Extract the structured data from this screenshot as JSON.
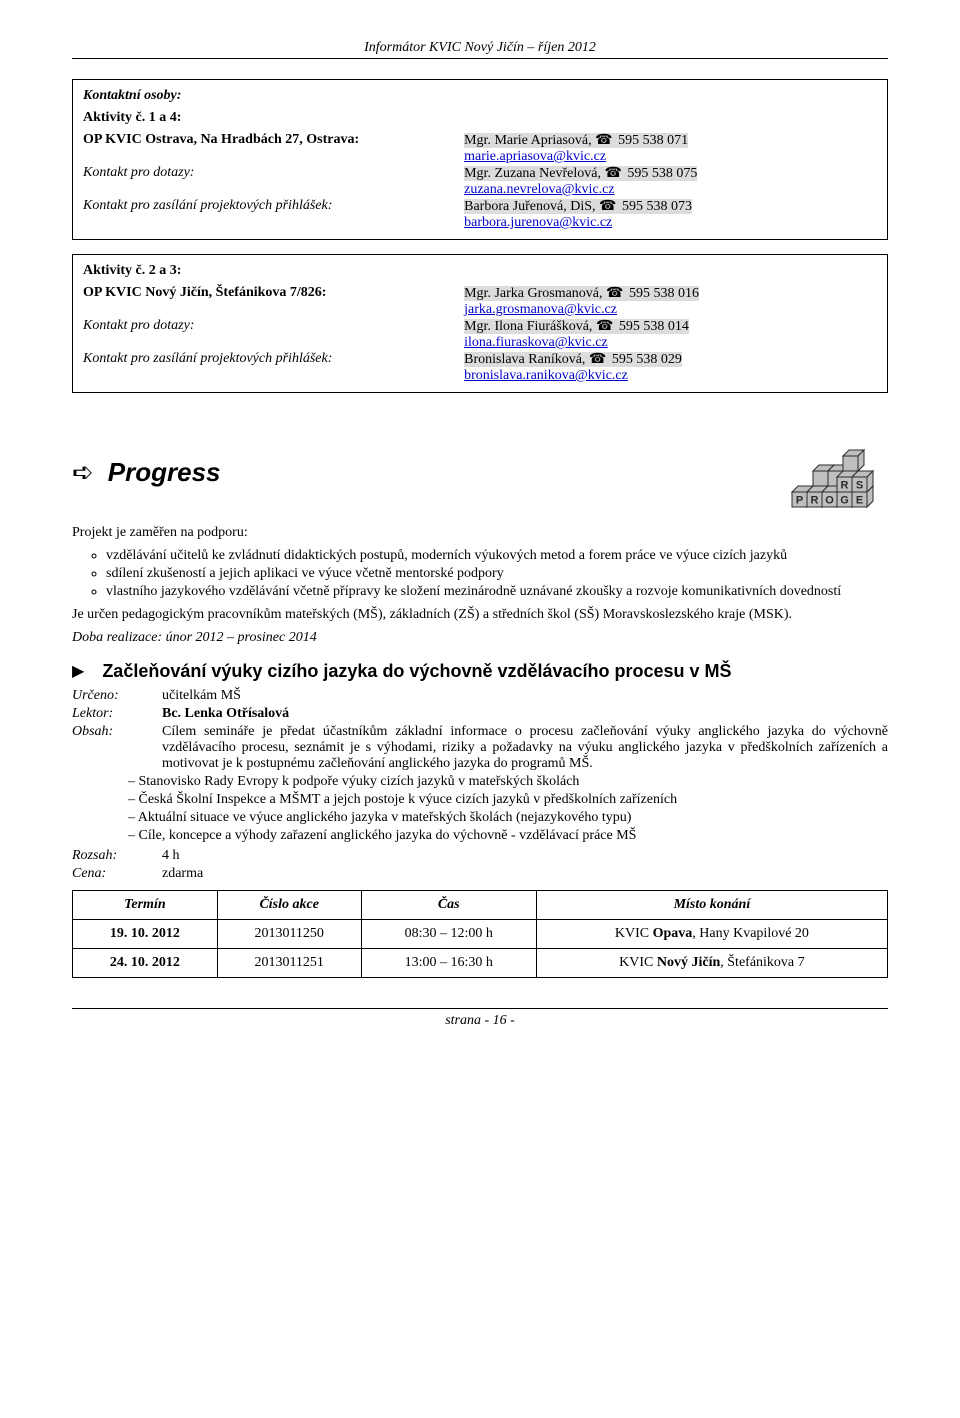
{
  "header": "Informátor KVIC Nový Jičín – říjen 2012",
  "footer": "strana - 16 -",
  "box1": {
    "title": "Kontaktní osoby:",
    "act_label": "Aktivity č. 1 a 4:",
    "org_line_left": "OP KVIC Ostrava, Na Hradbách 27, Ostrava:",
    "org_line_right_pre": "Mgr. Marie Apriasová, ",
    "org_line_right_phone": "595 538 071",
    "org_email": "marie.apriasova@kvic.cz",
    "dotazy_label": "Kontakt pro dotazy:",
    "dotazy_right_pre": "Mgr. Zuzana Nevřelová, ",
    "dotazy_phone": "595 538 075",
    "dotazy_email": "zuzana.nevrelova@kvic.cz",
    "zasil_label": "Kontakt pro zasílání projektových přihlášek:",
    "zasil_right_pre": "Barbora Juřenová, DiS, ",
    "zasil_phone": "595 538 073",
    "zasil_email": "barbora.jurenova@kvic.cz"
  },
  "box2": {
    "act_label": "Aktivity č. 2 a 3:",
    "org_line_left": "OP KVIC Nový Jičín, Štefánikova 7/826:",
    "org_line_right_pre": "Mgr. Jarka Grosmanová, ",
    "org_line_right_phone": "595 538 016",
    "org_email": "jarka.grosmanova@kvic.cz",
    "dotazy_label": "Kontakt pro dotazy:",
    "dotazy_right_pre": "Mgr. Ilona Fiurášková, ",
    "dotazy_phone": "595 538 014",
    "dotazy_email": "ilona.fiuraskova@kvic.cz",
    "zasil_label": "Kontakt pro zasílání projektových přihlášek:",
    "zasil_right_pre": "Bronislava Raníková, ",
    "zasil_phone": "595 538 029",
    "zasil_email": "bronislava.ranikova@kvic.cz"
  },
  "progress": {
    "title": "Progress",
    "intro": "Projekt je zaměřen na podporu:",
    "bullets": [
      "vzdělávání učitelů ke zvládnutí didaktických postupů, moderních výukových metod a forem práce ve výuce cizích jazyků",
      "sdílení zkušeností a jejich aplikaci ve výuce včetně mentorské podpory",
      "vlastního jazykového vzdělávání včetně přípravy ke složení mezinárodně uznávané zkoušky a rozvoje komunikativních dovedností"
    ],
    "p2": "Je určen pedagogickým pracovníkům mateřských (MŠ), základních (ZŠ) a středních škol (SŠ) Moravskoslezského kraje (MSK).",
    "p3_ital": "Doba realizace: únor 2012 – prosinec 2014"
  },
  "logo": {
    "cube_fill": "#bfbfbf",
    "cube_stroke": "#2b2b2b",
    "letter_fill": "#2b2b2b",
    "letters": [
      "P",
      "R",
      "O",
      "G",
      "R",
      "E",
      "S",
      "S"
    ]
  },
  "event": {
    "title": "Začleňování výuky cizího jazyka do výchovně vzdělávacího procesu v MŠ",
    "urceno_label": "Určeno:",
    "urceno_val": "učitelkám MŠ",
    "lektor_label": "Lektor:",
    "lektor_val": "Bc. Lenka Otřísalová",
    "obsah_label": "Obsah:",
    "obsah_para": "Cílem semináře je předat účastníkům základní informace o procesu začleňování výuky anglického jazyka do výchovně vzdělávacího procesu, seznámit je s výhodami, riziky a požadavky na výuku anglického jazyka v předškolních zařízeních a motivovat je k postupnému začleňování anglického jazyka do programů MŠ.",
    "obsah_dashes": [
      "Stanovisko Rady Evropy k podpoře výuky cizích jazyků v mateřských školách",
      "Česká Školní Inspekce a MŠMT a jejch postoje k výuce cizích jazyků v předškolních zařízeních",
      "Aktuální situace ve výuce anglického jazyka v mateřských školách (nejazykového typu)",
      "Cíle, koncepce a výhody zařazení anglického jazyka do výchovně - vzdělávací práce MŠ"
    ],
    "rozsah_label": "Rozsah:",
    "rozsah_val": "4 h",
    "cena_label": "Cena:",
    "cena_val": "zdarma"
  },
  "table": {
    "headers": [
      "Termín",
      "Číslo akce",
      "Čas",
      "Místo konání"
    ],
    "rows": [
      {
        "date": "19. 10. 2012",
        "num": "2013011250",
        "time": "08:30 – 12:00 h",
        "place_prefix": "KVIC ",
        "place_bold": "Opava",
        "place_suffix": ", Hany Kvapilové 20"
      },
      {
        "date": "24. 10. 2012",
        "num": "2013011251",
        "time": "13:00 – 16:30 h",
        "place_prefix": "KVIC ",
        "place_bold": "Nový Jičín",
        "place_suffix": ", Štefánikova 7"
      }
    ]
  }
}
